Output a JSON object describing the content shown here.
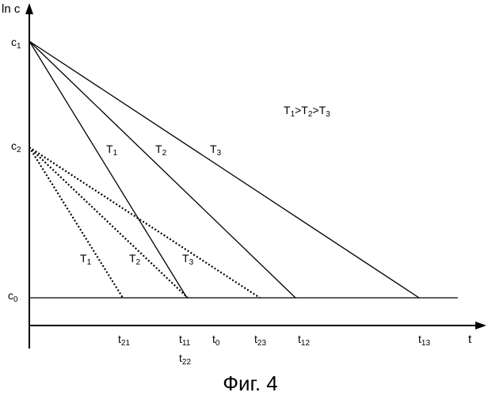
{
  "axes": {
    "y_title": "ln c",
    "x_title": "t"
  },
  "y_labels": {
    "c1": {
      "base": "c",
      "sub": "1"
    },
    "c2": {
      "base": "c",
      "sub": "2"
    },
    "c0": {
      "base": "c",
      "sub": "0"
    }
  },
  "x_labels": {
    "t21": {
      "base": "t",
      "sub": "21"
    },
    "t11": {
      "base": "t",
      "sub": "11"
    },
    "t22": {
      "base": "t",
      "sub": "22"
    },
    "t0": {
      "base": "t",
      "sub": "0"
    },
    "t23": {
      "base": "t",
      "sub": "23"
    },
    "t12": {
      "base": "t",
      "sub": "12"
    },
    "t13": {
      "base": "t",
      "sub": "13"
    }
  },
  "line_labels": {
    "solid": [
      {
        "base": "T",
        "sub": "1"
      },
      {
        "base": "T",
        "sub": "2"
      },
      {
        "base": "T",
        "sub": "3"
      }
    ],
    "dotted": [
      {
        "base": "T",
        "sub": "1"
      },
      {
        "base": "T",
        "sub": "2"
      },
      {
        "base": "T",
        "sub": "3"
      }
    ]
  },
  "relation": {
    "parts": [
      {
        "base": "T",
        "sub": "1"
      },
      {
        "base": ">T",
        "sub": "2"
      },
      {
        "base": ">T",
        "sub": "3"
      }
    ]
  },
  "caption": "Фиг. 4"
}
